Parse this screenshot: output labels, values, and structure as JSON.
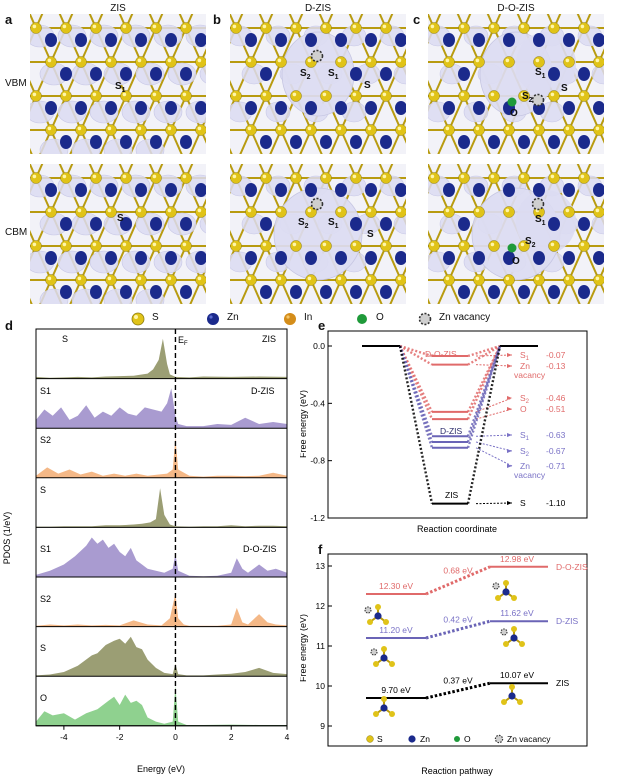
{
  "panel_labels": {
    "a": "a",
    "b": "b",
    "c": "c",
    "d": "d",
    "e": "e",
    "f": "f"
  },
  "columns": {
    "zis": "ZIS",
    "dzis": "D-ZIS",
    "dozis": "D-O-ZIS"
  },
  "rows": {
    "vbm": "VBM",
    "cbm": "CBM"
  },
  "atom_labels": {
    "a_vbm": [
      "S",
      "1"
    ],
    "a_cbm": "S",
    "b_vbm": [
      [
        "S",
        "2"
      ],
      [
        "S",
        "1"
      ],
      "S"
    ],
    "b_cbm": [
      [
        "S",
        "2"
      ],
      [
        "S",
        "1"
      ],
      "S"
    ],
    "c_vbm": [
      [
        "S",
        "1"
      ],
      [
        "S",
        "2"
      ],
      "S",
      "O"
    ],
    "c_cbm": [
      [
        "S",
        "1"
      ],
      [
        "S",
        "2"
      ],
      "O"
    ]
  },
  "legend": {
    "s": "S",
    "zn": "Zn",
    "in": "In",
    "o": "O",
    "zn_vacancy": "Zn vacancy"
  },
  "colors": {
    "s": "#e0c318",
    "zn": "#1b2a8c",
    "in": "#d48d1a",
    "o": "#1f9a3a",
    "iso": "#dcdcf2",
    "zis": "#000000",
    "dzis": "#7a72c6",
    "dozis": "#e06a6a"
  },
  "chart_data": [
    {
      "id": "d",
      "type": "area",
      "xlabel": "Energy (eV)",
      "ylabel": "PDOS (1/eV)",
      "xlim": [
        -5,
        4
      ],
      "xticks": [
        "-4",
        "-2",
        "0",
        "2",
        "4"
      ],
      "fermi_label": [
        "E",
        "F"
      ],
      "group_labels": [
        "ZIS",
        "D-ZIS",
        "D-O-ZIS"
      ],
      "series": [
        {
          "name": "S",
          "group": "ZIS",
          "color": "#9b9e74",
          "x": [
            -5,
            -4.5,
            -4,
            -3.5,
            -3,
            -2.5,
            -2,
            -1.5,
            -1.3,
            -1,
            -0.8,
            -0.6,
            -0.45,
            -0.3,
            -0.2,
            0,
            0.5,
            1,
            2,
            3,
            4
          ],
          "y": [
            0.04,
            0.02,
            0.03,
            0.04,
            0.03,
            0.05,
            0.06,
            0.07,
            0.09,
            0.12,
            0.22,
            0.45,
            0.96,
            0.35,
            0.1,
            0.04,
            0.03,
            0.05,
            0.04,
            0.05,
            0.04
          ]
        },
        {
          "name": "S1",
          "group": "D-ZIS",
          "color": "#a99bd0",
          "x": [
            -5,
            -4.7,
            -4.4,
            -4.1,
            -3.8,
            -3.5,
            -3.2,
            -2.9,
            -2.6,
            -2.3,
            -2,
            -1.7,
            -1.4,
            -1.1,
            -0.8,
            -0.5,
            -0.3,
            -0.15,
            0,
            0.1,
            0.4,
            1,
            1.5,
            2,
            2.5,
            3,
            3.5,
            4
          ],
          "y": [
            0.2,
            0.45,
            0.3,
            0.5,
            0.2,
            0.3,
            0.55,
            0.25,
            0.4,
            0.3,
            0.5,
            0.35,
            0.3,
            0.5,
            0.45,
            0.4,
            0.6,
            0.96,
            0.3,
            0.1,
            0.05,
            0.05,
            0.1,
            0.08,
            0.25,
            0.1,
            0.15,
            0.1
          ]
        },
        {
          "name": "S2",
          "group": "D-ZIS",
          "color": "#f4b887",
          "x": [
            -5,
            -4.6,
            -4.2,
            -3.8,
            -3.4,
            -3,
            -2.6,
            -2.2,
            -1.8,
            -1.4,
            -1,
            -0.6,
            -0.3,
            -0.1,
            0,
            0.1,
            0.5,
            1,
            1.5,
            2,
            2.5,
            3,
            3.5,
            4
          ],
          "y": [
            0.05,
            0.25,
            0.1,
            0.2,
            0.08,
            0.15,
            0.05,
            0.1,
            0.05,
            0.1,
            0.05,
            0.08,
            0.1,
            0.2,
            0.96,
            0.2,
            0.05,
            0.03,
            0.05,
            0.05,
            0.04,
            0.05,
            0.12,
            0.05
          ]
        },
        {
          "name": "S",
          "group": "D-O-ZIS",
          "color": "#9b9e74",
          "x": [
            -5,
            -4.5,
            -4,
            -3.5,
            -3,
            -2.5,
            -2,
            -1.5,
            -1.2,
            -0.9,
            -0.7,
            -0.55,
            -0.4,
            -0.2,
            0,
            0.5,
            1,
            1.5,
            2,
            2.5,
            3,
            3.5,
            4
          ],
          "y": [
            0.02,
            0.02,
            0.03,
            0.03,
            0.03,
            0.05,
            0.05,
            0.07,
            0.09,
            0.12,
            0.2,
            0.94,
            0.3,
            0.07,
            0.03,
            0.02,
            0.03,
            0.03,
            0.05,
            0.03,
            0.04,
            0.04,
            0.03
          ]
        },
        {
          "name": "S1",
          "group": "D-O-ZIS",
          "color": "#a99bd0",
          "x": [
            -5,
            -4.5,
            -4,
            -3.6,
            -3.2,
            -3,
            -2.8,
            -2.6,
            -2.4,
            -2.2,
            -2,
            -1.8,
            -1.6,
            -1.4,
            -1.2,
            -1,
            -0.7,
            -0.4,
            -0.1,
            0,
            0.1,
            0.5,
            1,
            1.5,
            2,
            2.2,
            2.4,
            2.6,
            3,
            3.3,
            3.6,
            4
          ],
          "y": [
            0.05,
            0.15,
            0.3,
            0.5,
            0.75,
            0.95,
            0.8,
            0.9,
            0.7,
            0.8,
            0.6,
            0.5,
            0.7,
            0.4,
            0.3,
            0.2,
            0.15,
            0.1,
            0.2,
            0.55,
            0.15,
            0.03,
            0.02,
            0.03,
            0.1,
            0.45,
            0.2,
            0.1,
            0.3,
            0.15,
            0.2,
            0.1
          ]
        },
        {
          "name": "S2",
          "group": "D-O-ZIS",
          "color": "#f4b887",
          "x": [
            -5,
            -4.5,
            -4,
            -3.5,
            -3,
            -2.5,
            -2,
            -1.5,
            -1,
            -0.5,
            -0.2,
            0,
            0.1,
            0.3,
            0.5,
            1,
            1.5,
            2,
            2.2,
            2.4,
            2.6,
            3,
            3.3,
            3.6,
            4
          ],
          "y": [
            0.02,
            0.05,
            0.03,
            0.05,
            0.03,
            0.04,
            0.03,
            0.15,
            0.05,
            0.03,
            0.2,
            0.8,
            0.2,
            0.05,
            0.02,
            0.02,
            0.02,
            0.05,
            0.45,
            0.1,
            0.05,
            0.3,
            0.1,
            0.05,
            0.03
          ]
        },
        {
          "name": "S",
          "group": "D-O-ZIS",
          "color": "#9b9e74",
          "x": [
            -5,
            -4.5,
            -4,
            -3.5,
            -3,
            -2.8,
            -2.5,
            -2.2,
            -2,
            -1.8,
            -1.6,
            -1.4,
            -1.2,
            -1,
            -0.7,
            -0.4,
            -0.1,
            0,
            0.1,
            0.4,
            1,
            1.5,
            2,
            2.5,
            3,
            3.5,
            4
          ],
          "y": [
            0.02,
            0.04,
            0.1,
            0.25,
            0.5,
            0.55,
            0.75,
            0.85,
            0.9,
            0.78,
            0.95,
            0.7,
            0.65,
            0.4,
            0.2,
            0.08,
            0.05,
            0.3,
            0.05,
            0.02,
            0.02,
            0.04,
            0.06,
            0.1,
            0.2,
            0.08,
            0.05
          ]
        },
        {
          "name": "O",
          "group": "D-O-ZIS",
          "color": "#8fd18f",
          "x": [
            -5,
            -4.7,
            -4.4,
            -4,
            -3.6,
            -3.2,
            -2.8,
            -2.4,
            -2.2,
            -2,
            -1.8,
            -1.6,
            -1.4,
            -1.2,
            -1,
            -0.7,
            -0.4,
            -0.1,
            0,
            0.1,
            0.4,
            1,
            2,
            3,
            4
          ],
          "y": [
            0.1,
            0.35,
            0.25,
            0.3,
            0.15,
            0.3,
            0.4,
            0.6,
            0.7,
            0.5,
            0.75,
            0.55,
            0.6,
            0.5,
            0.2,
            0.1,
            0.05,
            0.1,
            0.96,
            0.1,
            0.02,
            0.02,
            0.03,
            0.02,
            0.02
          ]
        }
      ]
    },
    {
      "id": "e",
      "type": "line",
      "xlabel": "Reaction coordinate",
      "ylabel": "Free energy (eV)",
      "ylim": [
        -1.2,
        0.1
      ],
      "yticks": [
        "0.0",
        "-0.4",
        "-0.8",
        "-1.2"
      ],
      "group_labels": [
        "D-O-ZIS",
        "D-ZIS",
        "ZIS"
      ],
      "levels": [
        {
          "name": "S1",
          "group": "D-O-ZIS",
          "value": -0.07,
          "label": "-0.07",
          "sub": "1"
        },
        {
          "name": "Zn vacancy",
          "group": "D-O-ZIS",
          "value": -0.13,
          "label": "-0.13"
        },
        {
          "name": "S2",
          "group": "D-O-ZIS",
          "value": -0.46,
          "label": "-0.46",
          "sub": "2"
        },
        {
          "name": "O",
          "group": "D-O-ZIS",
          "value": -0.51,
          "label": "-0.51"
        },
        {
          "name": "S1",
          "group": "D-ZIS",
          "value": -0.63,
          "label": "-0.63",
          "sub": "1"
        },
        {
          "name": "S2",
          "group": "D-ZIS",
          "value": -0.67,
          "label": "-0.67",
          "sub": "2"
        },
        {
          "name": "Zn vacancy",
          "group": "D-ZIS",
          "value": -0.71,
          "label": "-0.71"
        },
        {
          "name": "S",
          "group": "ZIS",
          "value": -1.1,
          "label": "-1.10"
        }
      ]
    },
    {
      "id": "f",
      "type": "line",
      "xlabel": "Reaction pathway",
      "ylabel": "Free energy (eV)",
      "ylim": [
        8.5,
        13.3
      ],
      "yticks": [
        "9",
        "10",
        "11",
        "12",
        "13"
      ],
      "series": [
        {
          "name": "D-O-ZIS",
          "start": 12.3,
          "end": 12.98,
          "start_label": "12.30 eV",
          "end_label": "12.98 eV",
          "delta": "0.68 eV"
        },
        {
          "name": "D-ZIS",
          "start": 11.2,
          "end": 11.62,
          "start_label": "11.20 eV",
          "end_label": "11.62 eV",
          "delta": "0.42 eV"
        },
        {
          "name": "ZIS",
          "start": 9.7,
          "end": 10.07,
          "start_label": "9.70 eV",
          "end_label": "10.07 eV",
          "delta": "0.37 eV"
        }
      ],
      "legend": {
        "s": "S",
        "zn": "Zn",
        "o": "O",
        "zn_vacancy": "Zn vacancy"
      }
    }
  ]
}
